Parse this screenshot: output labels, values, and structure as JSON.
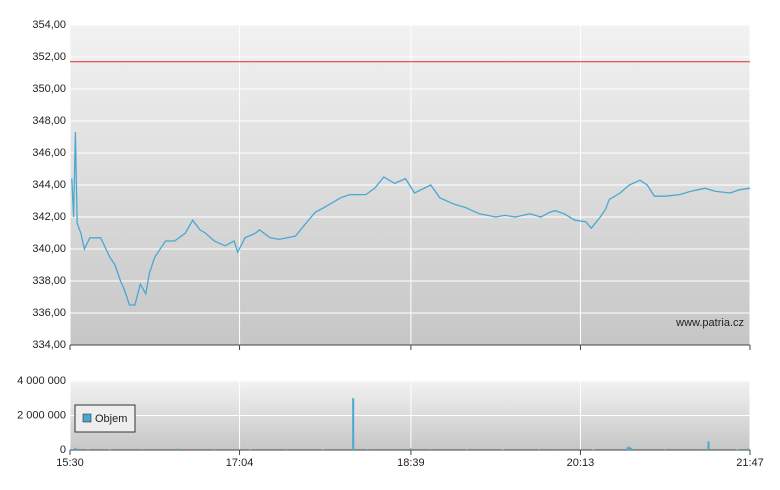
{
  "chart_data": [
    {
      "type": "line",
      "x": [
        931,
        932,
        933,
        934,
        936,
        938,
        941,
        947,
        952,
        955,
        958,
        960,
        963,
        966,
        969,
        972,
        974,
        977,
        983,
        988,
        994,
        998,
        1002,
        1005,
        1010,
        1016,
        1021,
        1023,
        1027,
        1033,
        1035,
        1041,
        1046,
        1055,
        1060,
        1066,
        1071,
        1080,
        1085,
        1094,
        1099,
        1104,
        1110,
        1116,
        1121,
        1130,
        1135,
        1143,
        1149,
        1157,
        1166,
        1171,
        1177,
        1185,
        1191,
        1196,
        1199,
        1204,
        1210,
        1216,
        1219,
        1224,
        1227,
        1229,
        1235,
        1240,
        1246,
        1250,
        1254,
        1260,
        1268,
        1274,
        1282,
        1288,
        1296,
        1301,
        1307
      ],
      "values": [
        344.4,
        342.0,
        347.3,
        341.6,
        341.0,
        340.0,
        340.7,
        340.7,
        339.5,
        339.0,
        338.0,
        337.5,
        336.5,
        336.5,
        337.8,
        337.2,
        338.5,
        339.5,
        340.5,
        340.5,
        341.0,
        341.8,
        341.2,
        341.0,
        340.5,
        340.2,
        340.5,
        339.8,
        340.7,
        341.0,
        341.2,
        340.7,
        340.6,
        340.8,
        341.5,
        342.3,
        342.6,
        343.2,
        343.4,
        343.4,
        343.8,
        344.5,
        344.1,
        344.4,
        343.5,
        344.0,
        343.2,
        342.8,
        342.6,
        342.2,
        342.0,
        342.1,
        342.0,
        342.2,
        342.0,
        342.3,
        342.4,
        342.2,
        341.8,
        341.7,
        341.3,
        342.0,
        342.5,
        343.1,
        343.5,
        344.0,
        344.3,
        344.0,
        343.3,
        343.3,
        343.4,
        343.6,
        343.8,
        343.6,
        343.5,
        343.7,
        343.8
      ],
      "color": "#4aa8d0",
      "reference_line": {
        "value": 351.7,
        "color": "#e03030"
      },
      "annotation": "www.patria.cz",
      "xlim": [
        930,
        1307
      ],
      "xticks": [
        930,
        1024,
        1119,
        1213,
        1307
      ],
      "ylim": [
        334,
        354
      ],
      "yticks": [
        {
          "value": 334,
          "label": "334,00"
        },
        {
          "value": 336,
          "label": "336,00"
        },
        {
          "value": 338,
          "label": "338,00"
        },
        {
          "value": 340,
          "label": "340,00"
        },
        {
          "value": 342,
          "label": "342,00"
        },
        {
          "value": 344,
          "label": "344,00"
        },
        {
          "value": 346,
          "label": "346,00"
        },
        {
          "value": 348,
          "label": "348,00"
        },
        {
          "value": 350,
          "label": "350,00"
        },
        {
          "value": 352,
          "label": "352,00"
        },
        {
          "value": 354,
          "label": "354,00"
        }
      ],
      "grid": true
    },
    {
      "type": "bar",
      "series": [
        {
          "name": "Objem",
          "color": "#4aa8d0",
          "x": [
            931,
            933,
            940,
            952,
            970,
            990,
            1010,
            1030,
            1050,
            1070,
            1087,
            1095,
            1119,
            1130,
            1150,
            1170,
            1190,
            1200,
            1220,
            1239,
            1240,
            1241,
            1260,
            1280,
            1284,
            1300,
            1306
          ],
          "values": [
            60000,
            120000,
            40000,
            30000,
            50000,
            80000,
            40000,
            30000,
            40000,
            30000,
            3000000,
            40000,
            90000,
            50000,
            40000,
            30000,
            40000,
            60000,
            30000,
            150000,
            200000,
            120000,
            40000,
            60000,
            500000,
            30000,
            80000
          ]
        }
      ],
      "legend": "lower-left",
      "xlim": [
        930,
        1307
      ],
      "xticks": [
        {
          "value": 930,
          "label": "15:30"
        },
        {
          "value": 1024,
          "label": "17:04"
        },
        {
          "value": 1119,
          "label": "18:39"
        },
        {
          "value": 1213,
          "label": "20:13"
        },
        {
          "value": 1307,
          "label": "21:47"
        }
      ],
      "ylim": [
        0,
        4000000
      ],
      "yticks": [
        {
          "value": 0,
          "label": "0"
        },
        {
          "value": 2000000,
          "label": "2 000 000"
        },
        {
          "value": 4000000,
          "label": "4 000 000"
        }
      ],
      "grid": true
    }
  ]
}
